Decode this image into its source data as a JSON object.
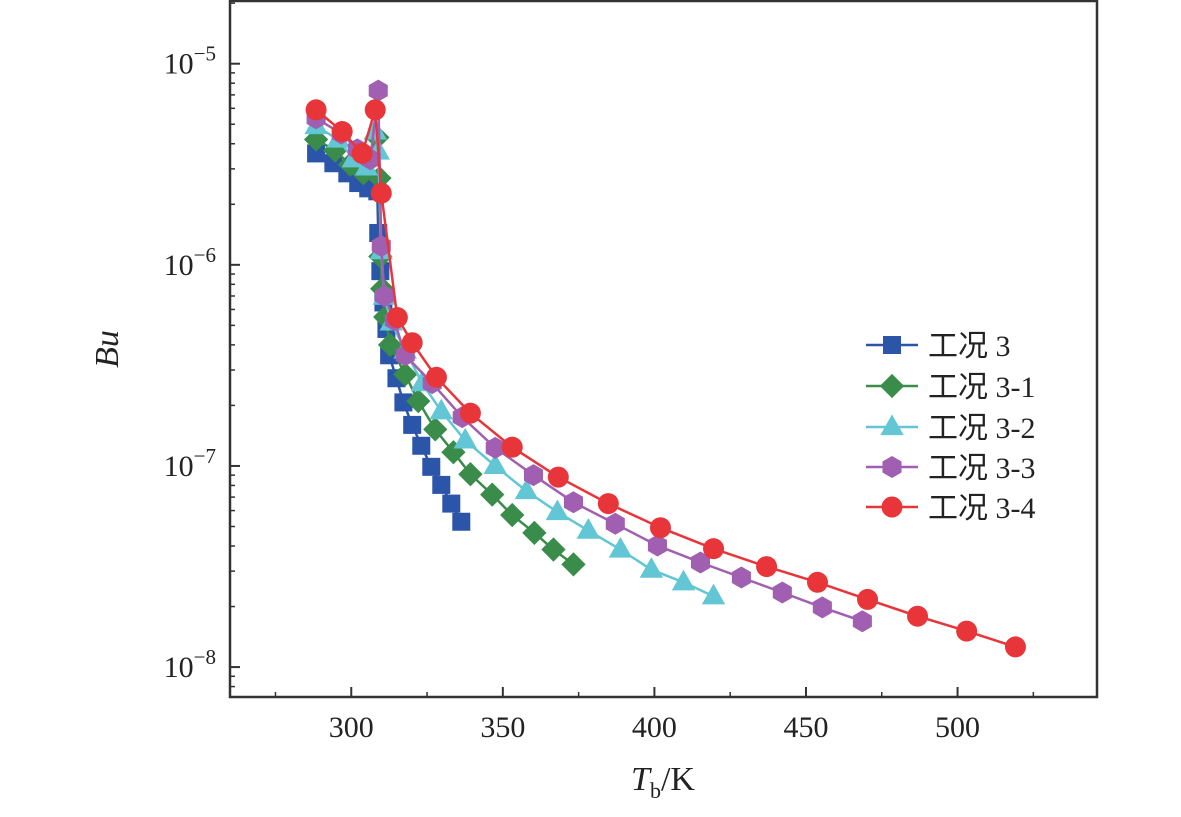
{
  "chart_data": {
    "type": "line",
    "title": "",
    "xlabel": {
      "main": "T",
      "sub": "b",
      "unit": "/K"
    },
    "ylabel": "Bu",
    "xlim": [
      260,
      546
    ],
    "ylim": [
      7.1e-09,
      2.05e-05
    ],
    "yscale": "log",
    "x_ticks": [
      300,
      350,
      400,
      450,
      500
    ],
    "y_ticks": [
      {
        "base": "10",
        "exp": "−5",
        "value": 1e-05
      },
      {
        "base": "10",
        "exp": "−6",
        "value": 1e-06
      },
      {
        "base": "10",
        "exp": "−7",
        "value": 1e-07
      },
      {
        "base": "10",
        "exp": "−8",
        "value": 1e-08
      }
    ],
    "grid": false,
    "legend_position": "right",
    "series": [
      {
        "name": "工况 3",
        "color": "#2a55a8",
        "marker": "square",
        "x": [
          288.4,
          294.1,
          298.7,
          302.3,
          305.6,
          308.6,
          308.9,
          309.6,
          310.6,
          311.6,
          312.5,
          314.9,
          317.2,
          320.1,
          323.1,
          326.4,
          329.7,
          333.0,
          336.3
        ],
        "y": [
          3.58e-06,
          3.2e-06,
          2.85e-06,
          2.55e-06,
          2.4e-06,
          2.32e-06,
          1.44e-06,
          9.3e-07,
          6.5e-07,
          4.8e-07,
          3.55e-07,
          2.73e-07,
          2.07e-07,
          1.6e-07,
          1.26e-07,
          9.9e-08,
          8.05e-08,
          6.5e-08,
          5.28e-08
        ]
      },
      {
        "name": "工况 3-1",
        "color": "#3a8c4a",
        "marker": "diamond",
        "x": [
          288.4,
          294.7,
          299.6,
          304.0,
          308.6,
          309.3,
          309.6,
          310.2,
          311.2,
          312.8,
          317.8,
          322.1,
          327.7,
          333.7,
          339.3,
          346.5,
          353.1,
          360.4,
          366.7,
          373.3
        ],
        "y": [
          4.2e-06,
          3.7e-06,
          3.15e-06,
          2.85e-06,
          4.3e-06,
          2.7e-06,
          1.1e-06,
          7.6e-07,
          5.5e-07,
          4e-07,
          2.85e-07,
          2.1e-07,
          1.52e-07,
          1.17e-07,
          9.1e-08,
          7.2e-08,
          5.7e-08,
          4.65e-08,
          3.84e-08,
          3.24e-08
        ]
      },
      {
        "name": "工况 3-2",
        "color": "#62c6d4",
        "marker": "triangle",
        "x": [
          288.4,
          295.7,
          300.7,
          305.0,
          307.9,
          308.9,
          309.9,
          310.9,
          313.2,
          317.8,
          323.4,
          329.7,
          337.6,
          347.5,
          357.8,
          368.0,
          378.2,
          388.8,
          399.0,
          409.6,
          419.5
        ],
        "y": [
          4.9e-06,
          4.2e-06,
          3.35e-06,
          3.05e-06,
          4.6e-06,
          3.66e-06,
          1.17e-06,
          6.95e-07,
          5.17e-07,
          3.75e-07,
          2.58e-07,
          1.87e-07,
          1.34e-07,
          1e-07,
          7.5e-08,
          5.9e-08,
          4.77e-08,
          3.84e-08,
          3.05e-08,
          2.64e-08,
          2.25e-08
        ]
      },
      {
        "name": "工况 3-3",
        "color": "#a05fb0",
        "marker": "hexagon",
        "x": [
          288.4,
          296.7,
          302.0,
          306.3,
          308.9,
          309.9,
          310.9,
          314.2,
          317.8,
          326.7,
          336.6,
          347.5,
          360.1,
          373.3,
          387.1,
          401.0,
          415.2,
          428.7,
          442.2,
          455.4,
          468.6
        ],
        "y": [
          5.35e-06,
          4.5e-06,
          3.75e-06,
          3.35e-06,
          7.35e-06,
          1.24e-06,
          7e-07,
          5.3e-07,
          3.55e-07,
          2.58e-07,
          1.75e-07,
          1.23e-07,
          9e-08,
          6.6e-08,
          5.16e-08,
          4.02e-08,
          3.31e-08,
          2.79e-08,
          2.35e-08,
          1.98e-08,
          1.69e-08
        ]
      },
      {
        "name": "工况 3-4",
        "color": "#e8353a",
        "marker": "circle",
        "x": [
          288.4,
          297.0,
          303.6,
          307.9,
          309.9,
          315.2,
          320.1,
          328.1,
          339.3,
          353.1,
          368.3,
          384.8,
          402.0,
          419.5,
          437.0,
          453.8,
          470.3,
          486.8,
          503.0,
          519.1
        ],
        "y": [
          5.9e-06,
          4.6e-06,
          3.58e-06,
          5.9e-06,
          2.27e-06,
          5.47e-07,
          4.1e-07,
          2.76e-07,
          1.83e-07,
          1.24e-07,
          8.8e-08,
          6.5e-08,
          4.93e-08,
          3.88e-08,
          3.16e-08,
          2.64e-08,
          2.17e-08,
          1.79e-08,
          1.51e-08,
          1.26e-08
        ]
      }
    ]
  }
}
